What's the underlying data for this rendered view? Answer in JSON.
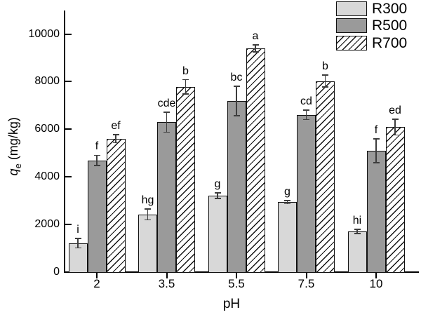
{
  "colors": {
    "background": "#ffffff",
    "axis": "#000000",
    "error_bar": "#3d3d3d",
    "text": "#000000"
  },
  "chart_data": {
    "type": "bar",
    "title": "",
    "xlabel": "pH",
    "ylabel": "qe (mg/kg)",
    "ylabel_parts": {
      "var": "q",
      "sub": "e",
      "unit": " (mg/kg)"
    },
    "categories": [
      "2",
      "3.5",
      "5.5",
      "7.5",
      "10"
    ],
    "yticks": [
      0,
      2000,
      4000,
      6000,
      8000,
      10000
    ],
    "ylim": [
      0,
      11000
    ],
    "grid": false,
    "legend_position": "top-right",
    "series": [
      {
        "name": "R300",
        "fill": "#d8d8d8",
        "pattern": "solid",
        "values": [
          1220,
          2420,
          3210,
          2940,
          1710
        ],
        "errors": [
          200,
          230,
          110,
          70,
          90
        ],
        "letters": [
          "i",
          "hg",
          "g",
          "g",
          "hi"
        ]
      },
      {
        "name": "R500",
        "fill": "#9a9a9a",
        "pattern": "solid",
        "values": [
          4690,
          6300,
          7190,
          6610,
          5100
        ],
        "errors": [
          220,
          420,
          620,
          200,
          500
        ],
        "letters": [
          "f",
          "cde",
          "bc",
          "cd",
          "f"
        ]
      },
      {
        "name": "R700",
        "fill": "#ffffff",
        "pattern": "diagonal-hatch",
        "values": [
          5600,
          7780,
          9400,
          8020,
          6090
        ],
        "errors": [
          170,
          300,
          150,
          250,
          330
        ],
        "letters": [
          "ef",
          "b",
          "a",
          "b",
          "ed"
        ]
      }
    ]
  },
  "legend": {
    "items": [
      {
        "label": "R300",
        "fill": "#d8d8d8",
        "pattern": "solid"
      },
      {
        "label": "R500",
        "fill": "#9a9a9a",
        "pattern": "solid"
      },
      {
        "label": "R700",
        "fill": "#ffffff",
        "pattern": "diagonal-hatch"
      }
    ]
  }
}
